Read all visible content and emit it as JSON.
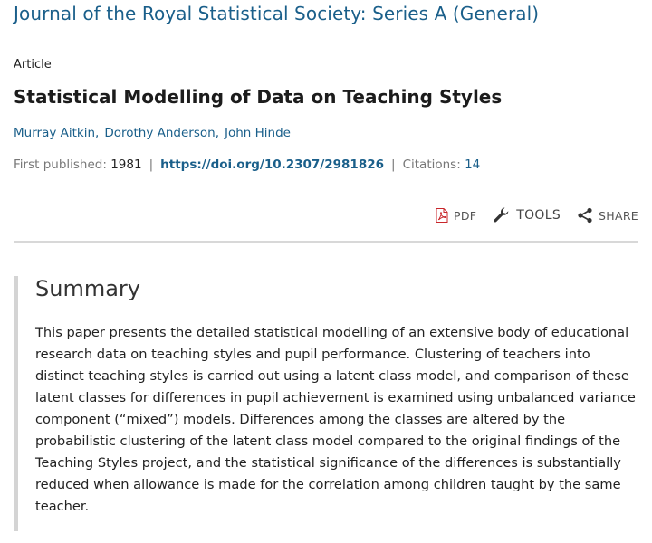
{
  "journal": {
    "title": "Journal of the Royal Statistical Society: Series A (General)"
  },
  "article": {
    "type": "Article",
    "title": "Statistical Modelling of Data on Teaching Styles",
    "authors": [
      "Murray Aitkin",
      "Dorothy Anderson",
      "John Hinde"
    ],
    "first_published_label": "First published:",
    "first_published_value": "1981",
    "doi": "https://doi.org/10.2307/2981826",
    "citations_label": "Citations:",
    "citations_count": "14"
  },
  "toolbar": {
    "pdf_label": "PDF",
    "tools_label": "TOOLS",
    "share_label": "SHARE",
    "icons": {
      "pdf": "pdf-icon",
      "tools": "wrench-icon",
      "share": "share-icon"
    }
  },
  "summary": {
    "heading": "Summary",
    "text": "This paper presents the detailed statistical modelling of an extensive body of educational research data on teaching styles and pupil performance. Clustering of teachers into distinct teaching styles is carried out using a latent class model, and comparison of these latent classes for differences in pupil achievement is examined using unbalanced variance component (“mixed”) models. Differences among the classes are altered by the probabilistic clustering of the latent class model compared to the original findings of the Teaching Styles project, and the statistical significance of the differences is substantially reduced when allowance is made for the correlation among children taught by the same teacher."
  },
  "colors": {
    "link": "#1a5f8a",
    "pdf_red": "#c8262b",
    "divider": "#d8d8d8",
    "summary_border": "#d4d4d4"
  }
}
